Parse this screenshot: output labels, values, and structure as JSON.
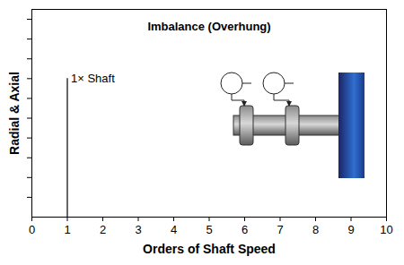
{
  "chart_data": {
    "type": "spectrum",
    "title": "Imbalance (Overhung)",
    "x_label": "Orders of Shaft Speed",
    "y_label": "Radial & Axial",
    "x": [
      1
    ],
    "values": [
      7
    ],
    "color": "#000000",
    "annotations": [
      {
        "text": "1× Shaft",
        "x": 1,
        "y": 7
      }
    ],
    "xlim": [
      0,
      10
    ],
    "xticks": [
      0,
      1,
      2,
      3,
      4,
      5,
      6,
      7,
      8,
      9,
      10
    ],
    "ylim": [
      0,
      10.5
    ],
    "yticks": [
      1,
      2,
      3,
      4,
      5,
      6,
      7,
      8,
      9,
      10
    ],
    "tick_labels": "x",
    "grid": false
  }
}
